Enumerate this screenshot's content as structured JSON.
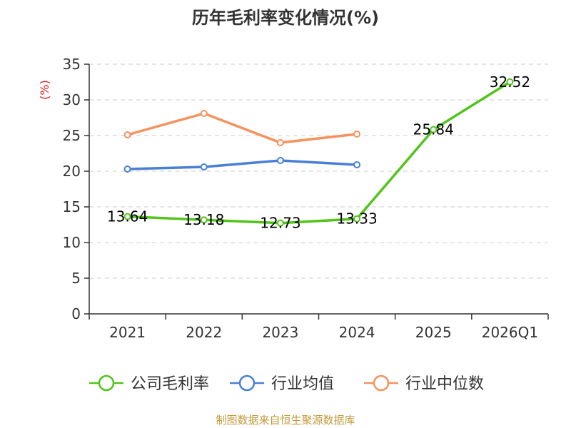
{
  "chart_data": {
    "type": "line",
    "title": "历年毛利率变化情况(%)",
    "ylabel": "(%)",
    "xlabel": "",
    "categories": [
      "2021",
      "2022",
      "2023",
      "2024",
      "2025",
      "2026Q1"
    ],
    "ylim": [
      0,
      35
    ],
    "yticks": [
      0,
      5,
      10,
      15,
      20,
      25,
      30,
      35
    ],
    "ytick_labels": [
      "0",
      "5",
      "10",
      "15",
      "20",
      "25",
      "30",
      "35"
    ],
    "grid": true,
    "legend_position": "bottom",
    "series": [
      {
        "name": "公司毛利率",
        "color": "#52c41a",
        "values": [
          13.64,
          13.18,
          12.73,
          13.33,
          25.84,
          32.52
        ],
        "labels": [
          "13.64",
          "13.18",
          "12.73",
          "13.33",
          "25.84",
          "32.52"
        ]
      },
      {
        "name": "行业均值",
        "color": "#4a7fd6",
        "values": [
          20.3,
          20.6,
          21.5,
          20.9,
          null,
          null
        ]
      },
      {
        "name": "行业中位数",
        "color": "#f5925e",
        "values": [
          25.1,
          28.1,
          24.0,
          25.2,
          null,
          null
        ]
      }
    ]
  },
  "source": "制图数据来自恒生聚源数据库"
}
